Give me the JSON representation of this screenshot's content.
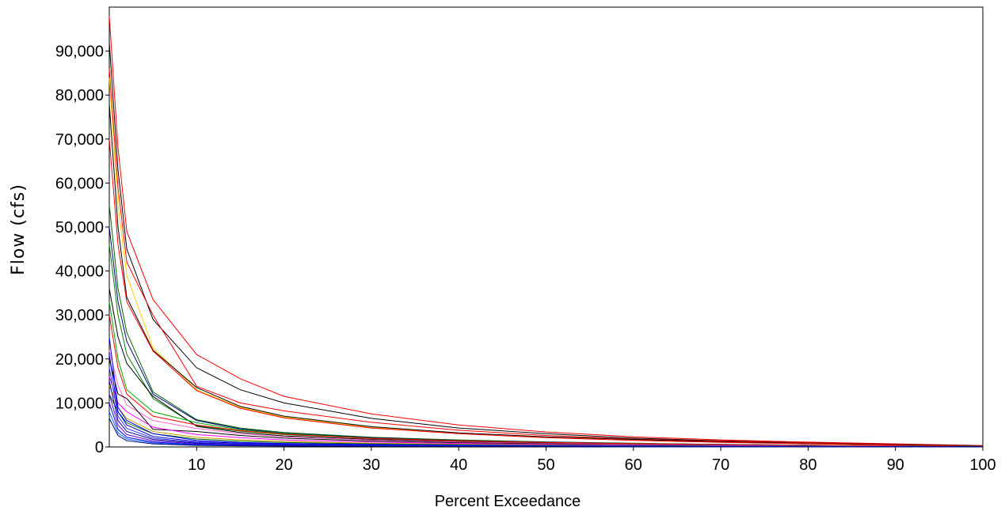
{
  "chart_data": {
    "type": "line",
    "title": "",
    "xlabel": "Percent Exceedance",
    "ylabel": "Flow (cfs)",
    "xlim": [
      0,
      100
    ],
    "ylim": [
      0,
      100000
    ],
    "grid": false,
    "legend": "none",
    "x_ticks": [
      10,
      20,
      30,
      40,
      50,
      60,
      70,
      80,
      90,
      100
    ],
    "x_tick_labels": [
      "10",
      "20",
      "30",
      "40",
      "50",
      "60",
      "70",
      "80",
      "90",
      "100"
    ],
    "y_ticks": [
      0,
      10000,
      20000,
      30000,
      40000,
      50000,
      60000,
      70000,
      80000,
      90000
    ],
    "y_tick_labels": [
      "0",
      "10,000",
      "20,000",
      "30,000",
      "40,000",
      "50,000",
      "60,000",
      "70,000",
      "80,000",
      "90,000"
    ],
    "x": [
      0,
      1,
      2,
      5,
      10,
      15,
      20,
      30,
      40,
      50,
      60,
      70,
      80,
      90,
      100
    ],
    "series": [
      {
        "color": "#ff0000",
        "values": [
          98000,
          68000,
          49000,
          33500,
          21000,
          15500,
          11500,
          7500,
          5000,
          3400,
          2300,
          1600,
          1100,
          700,
          300
        ]
      },
      {
        "color": "#000000",
        "values": [
          92000,
          63000,
          45000,
          29000,
          18000,
          13000,
          10000,
          6500,
          4300,
          3000,
          2000,
          1400,
          950,
          600,
          250
        ]
      },
      {
        "color": "#ff0000",
        "values": [
          86000,
          59000,
          42000,
          30000,
          13800,
          10000,
          8200,
          5600,
          3800,
          2600,
          1800,
          1300,
          900,
          550,
          220
        ]
      },
      {
        "color": "#ffcc00",
        "values": [
          84000,
          55000,
          39000,
          22500,
          13000,
          9000,
          6800,
          4500,
          3100,
          2200,
          1600,
          1100,
          750,
          450,
          180
        ]
      },
      {
        "color": "#000000",
        "values": [
          78000,
          50000,
          34000,
          22000,
          13500,
          9200,
          7000,
          4600,
          3200,
          2300,
          1700,
          1150,
          800,
          500,
          200
        ]
      },
      {
        "color": "#ff0000",
        "values": [
          70000,
          46000,
          33000,
          21800,
          12800,
          8800,
          6600,
          4300,
          3000,
          2100,
          1500,
          1050,
          720,
          440,
          170
        ]
      },
      {
        "color": "#006600",
        "values": [
          55000,
          36000,
          26000,
          12500,
          6200,
          4300,
          3300,
          2200,
          1600,
          1150,
          850,
          600,
          420,
          260,
          100
        ]
      },
      {
        "color": "#000080",
        "values": [
          50000,
          33000,
          24000,
          12000,
          6000,
          4100,
          3100,
          2100,
          1500,
          1100,
          800,
          570,
          400,
          250,
          90
        ]
      },
      {
        "color": "#008000",
        "values": [
          46000,
          30000,
          21000,
          11000,
          4800,
          3600,
          2800,
          1900,
          1400,
          1000,
          750,
          520,
          370,
          230,
          80
        ]
      },
      {
        "color": "#000000",
        "values": [
          36000,
          25000,
          19000,
          11500,
          4700,
          3300,
          2500,
          1700,
          1250,
          900,
          650,
          460,
          330,
          200,
          70
        ]
      },
      {
        "color": "#00aa00",
        "values": [
          33000,
          20000,
          13000,
          8000,
          5500,
          3900,
          3000,
          2000,
          1450,
          1050,
          780,
          540,
          380,
          240,
          85
        ]
      },
      {
        "color": "#ff0000",
        "values": [
          30000,
          18000,
          12000,
          7000,
          5000,
          3700,
          2900,
          1950,
          1400,
          1000,
          750,
          520,
          360,
          220,
          75
        ]
      },
      {
        "color": "#ff66cc",
        "values": [
          22000,
          14000,
          9500,
          6000,
          4200,
          3000,
          2300,
          1550,
          1100,
          800,
          580,
          400,
          280,
          170,
          55
        ]
      },
      {
        "color": "#000000",
        "values": [
          20000,
          12000,
          11000,
          4000,
          3500,
          2600,
          2000,
          1350,
          950,
          700,
          500,
          350,
          250,
          150,
          50
        ]
      },
      {
        "color": "#ff00ff",
        "values": [
          16000,
          10000,
          8000,
          4500,
          2800,
          2100,
          1600,
          1100,
          800,
          580,
          420,
          300,
          210,
          130,
          45
        ]
      },
      {
        "color": "#cc9900",
        "values": [
          14000,
          9000,
          6500,
          3500,
          2200,
          1600,
          1250,
          850,
          620,
          450,
          330,
          230,
          160,
          100,
          35
        ]
      },
      {
        "color": "#006600",
        "values": [
          12000,
          8000,
          5500,
          3000,
          1800,
          1300,
          1000,
          700,
          500,
          360,
          260,
          180,
          125,
          80,
          28
        ]
      },
      {
        "color": "#0000ff",
        "values": [
          25000,
          9000,
          6000,
          3000,
          1500,
          1000,
          800,
          550,
          400,
          290,
          210,
          150,
          100,
          65,
          22
        ]
      },
      {
        "color": "#0000cc",
        "values": [
          21000,
          8000,
          5000,
          2400,
          1200,
          850,
          650,
          450,
          320,
          230,
          170,
          120,
          80,
          50,
          18
        ]
      },
      {
        "color": "#3333ff",
        "values": [
          18000,
          7000,
          4200,
          2000,
          1000,
          700,
          540,
          370,
          260,
          190,
          140,
          95,
          65,
          40,
          14
        ]
      },
      {
        "color": "#000099",
        "values": [
          15000,
          6000,
          3500,
          1700,
          850,
          600,
          460,
          310,
          220,
          160,
          115,
          80,
          55,
          34,
          12
        ]
      },
      {
        "color": "#6600cc",
        "values": [
          12000,
          5000,
          2800,
          1400,
          700,
          500,
          380,
          260,
          180,
          130,
          95,
          66,
          45,
          28,
          10
        ]
      },
      {
        "color": "#0000ff",
        "values": [
          10000,
          4000,
          2200,
          1100,
          560,
          400,
          300,
          210,
          150,
          105,
          76,
          53,
          36,
          22,
          8
        ]
      },
      {
        "color": "#0066ff",
        "values": [
          8000,
          3200,
          1800,
          900,
          450,
          320,
          240,
          165,
          118,
          85,
          60,
          42,
          29,
          18,
          6
        ]
      },
      {
        "color": "#000066",
        "values": [
          6500,
          2600,
          1400,
          700,
          350,
          250,
          190,
          130,
          92,
          66,
          47,
          33,
          23,
          14,
          5
        ]
      }
    ]
  }
}
